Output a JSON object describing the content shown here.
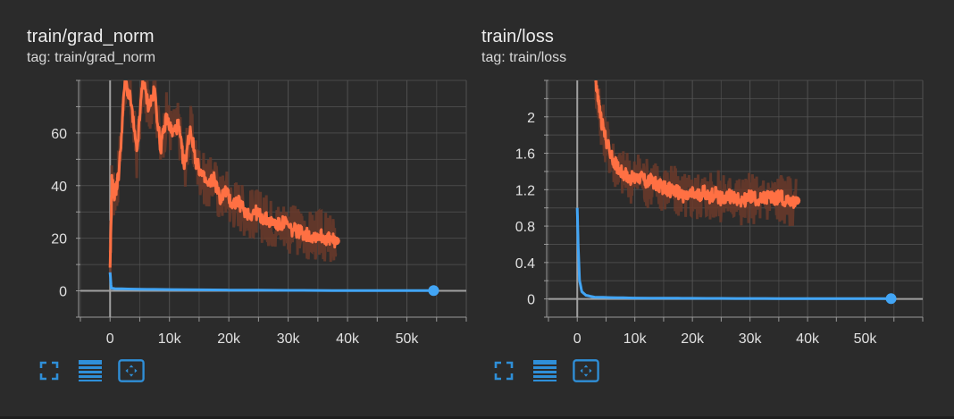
{
  "colors": {
    "background": "#2b2b2b",
    "smoothed_series": "#ff7043",
    "raw_series": "#6b3a2a",
    "blue_series": "#42a5f5",
    "grid": "#555555",
    "axis_text": "#e0e0e0",
    "tool_icon": "#2f8fd8"
  },
  "toolbar_icons": [
    "fullscreen-icon",
    "data-table-icon",
    "fit-domain-icon"
  ],
  "charts": [
    {
      "title": "train/grad_norm",
      "tag": "tag: train/grad_norm"
    },
    {
      "title": "train/loss",
      "tag": "tag: train/loss"
    }
  ],
  "chart_data": [
    {
      "type": "line",
      "title": "train/grad_norm",
      "xlabel": "",
      "ylabel": "",
      "xlim": [
        -5000,
        60000
      ],
      "ylim": [
        -10,
        80
      ],
      "x_ticks": [
        0,
        10000,
        20000,
        30000,
        40000,
        50000
      ],
      "x_tick_labels": [
        "0",
        "10k",
        "20k",
        "30k",
        "40k",
        "50k"
      ],
      "y_ticks": [
        0,
        20,
        40,
        60
      ],
      "y_tick_labels": [
        "0",
        "20",
        "40",
        "60"
      ],
      "grid": true,
      "series": [
        {
          "style": "smoothed",
          "color": "#ff7043",
          "x": [
            0,
            300,
            800,
            1500,
            2500,
            3500,
            4500,
            5500,
            6500,
            7500,
            8500,
            9500,
            10500,
            11500,
            12500,
            13500,
            14500,
            15500,
            16500,
            17500,
            18500,
            19500,
            20500,
            21500,
            22500,
            23500,
            24500,
            25500,
            26500,
            27500,
            28500,
            29500,
            30500,
            31500,
            32500,
            33500,
            34500,
            35500,
            36500,
            37500,
            38000
          ],
          "y": [
            7,
            42,
            36,
            45,
            80,
            72,
            52,
            80,
            70,
            76,
            54,
            66,
            60,
            63,
            47,
            62,
            49,
            44,
            40,
            43,
            35,
            38,
            33,
            34,
            31,
            29,
            30,
            28,
            27,
            26,
            25,
            26,
            23,
            23,
            22,
            21,
            21,
            21,
            20,
            19,
            19
          ]
        },
        {
          "style": "smoothed",
          "color": "#42a5f5",
          "x": [
            0,
            200,
            1000,
            5000,
            10000,
            20000,
            30000,
            40000,
            50000,
            54500
          ],
          "y": [
            7,
            1,
            0.8,
            0.6,
            0.5,
            0.3,
            0.2,
            0.1,
            0.1,
            0.1
          ]
        }
      ]
    },
    {
      "type": "line",
      "title": "train/loss",
      "xlabel": "",
      "ylabel": "",
      "xlim": [
        -5000,
        60000
      ],
      "ylim": [
        -0.2,
        2.4
      ],
      "x_ticks": [
        0,
        10000,
        20000,
        30000,
        40000,
        50000
      ],
      "x_tick_labels": [
        "0",
        "10k",
        "20k",
        "30k",
        "40k",
        "50k"
      ],
      "y_ticks": [
        0,
        0.4,
        0.8,
        1.2,
        1.6,
        2
      ],
      "y_tick_labels": [
        "0",
        "0.4",
        "0.8",
        "1.2",
        "1.6",
        "2"
      ],
      "grid": true,
      "series": [
        {
          "style": "smoothed",
          "color": "#ff7043",
          "x": [
            3200,
            3600,
            4200,
            5000,
            6000,
            7000,
            8000,
            9000,
            10000,
            11000,
            12000,
            13000,
            14000,
            15000,
            16000,
            17000,
            18000,
            19000,
            20000,
            21000,
            22000,
            23000,
            24000,
            25000,
            26000,
            27000,
            28000,
            29000,
            30000,
            31000,
            32000,
            33000,
            34000,
            35000,
            36000,
            37000,
            38000
          ],
          "y": [
            2.4,
            2.2,
            1.95,
            1.75,
            1.55,
            1.45,
            1.38,
            1.33,
            1.32,
            1.35,
            1.28,
            1.3,
            1.25,
            1.22,
            1.2,
            1.18,
            1.15,
            1.12,
            1.15,
            1.13,
            1.18,
            1.12,
            1.16,
            1.1,
            1.12,
            1.13,
            1.1,
            1.08,
            1.12,
            1.1,
            1.08,
            1.12,
            1.1,
            1.12,
            1.1,
            1.08,
            1.08
          ]
        },
        {
          "style": "smoothed",
          "color": "#42a5f5",
          "x": [
            0,
            150,
            400,
            800,
            1500,
            3000,
            6000,
            10000,
            20000,
            30000,
            40000,
            54500
          ],
          "y": [
            1.0,
            0.6,
            0.2,
            0.08,
            0.04,
            0.02,
            0.015,
            0.01,
            0.007,
            0.005,
            0.004,
            0.003
          ]
        }
      ]
    }
  ]
}
